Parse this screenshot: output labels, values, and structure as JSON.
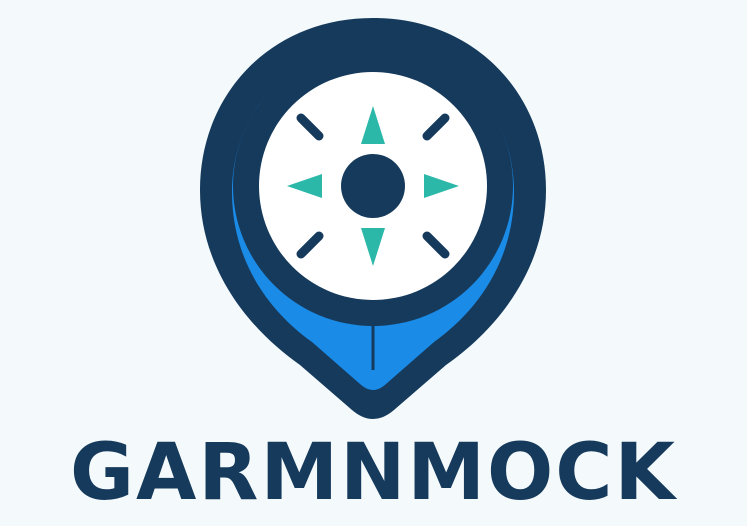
{
  "brand": {
    "name": "GARMNMOCK",
    "icon": "map-pin-compass-icon"
  },
  "colors": {
    "background": "#f4fafc",
    "navy": "#163a5c",
    "blue": "#1a8ce8",
    "teal": "#2bb8a8",
    "white": "#ffffff"
  }
}
